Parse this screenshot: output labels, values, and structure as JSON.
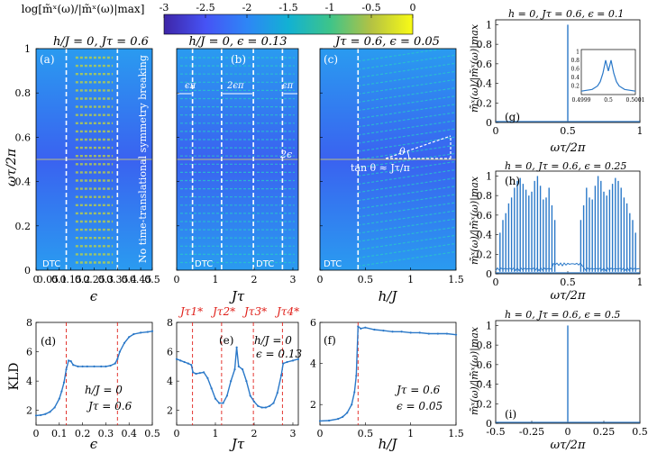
{
  "chart_data": [
    {
      "id": "a",
      "type": "heatmap",
      "title": "h/J = 0, Jτ = 0.6",
      "panel_label": "(a)",
      "xlabel": "ϵ",
      "ylabel": "ωτ/2π",
      "xlim": [
        0,
        0.5
      ],
      "ylim": [
        0,
        1
      ],
      "xticks": [
        "0",
        "0.05",
        "0.1",
        "0.15",
        "0.2",
        "0.25",
        "0.3",
        "0.35",
        "0.4",
        "0.45",
        "0.5"
      ],
      "yticks": [
        "0",
        "0.2",
        "0.4",
        "0.6",
        "0.8",
        "1"
      ],
      "boundaries": [
        0.13,
        0.35
      ],
      "annotations": [
        "DTC",
        "No time-translational symmetry breaking"
      ]
    },
    {
      "id": "b",
      "type": "heatmap",
      "title": "h/J = 0, ϵ = 0.13",
      "panel_label": "(b)",
      "xlabel": "Jτ",
      "ylabel": "",
      "xlim": [
        0,
        3.14
      ],
      "ylim": [
        0,
        1
      ],
      "xticks": [
        "0",
        "1",
        "2",
        "3"
      ],
      "boundaries": [
        0.41,
        1.16,
        1.98,
        2.73
      ],
      "annotations": [
        "ϵπ",
        "2ϵπ",
        "ϵπ",
        "2ϵ",
        "DTC",
        "DTC"
      ]
    },
    {
      "id": "c",
      "type": "heatmap",
      "title": "Jτ = 0.6, ϵ = 0.05",
      "panel_label": "(c)",
      "xlabel": "h/J",
      "ylabel": "",
      "xlim": [
        0,
        1.5
      ],
      "ylim": [
        0,
        1
      ],
      "xticks": [
        "0",
        "0.5",
        "1",
        "1.5"
      ],
      "boundaries": [
        0.42
      ],
      "annotations": [
        "DTC",
        "θ",
        "tan θ ≈ Jτ/π"
      ]
    },
    {
      "id": "colorbar",
      "type": "colorbar",
      "label": "log[m̃ˣ(ω)/|m̃ˣ(ω)|max]",
      "range": [
        -3,
        0
      ],
      "ticks": [
        "-3",
        "-2.5",
        "-2",
        "-1.5",
        "-1",
        "-0.5",
        "0"
      ],
      "colors": [
        "#3e26a8",
        "#4653f5",
        "#2e86f6",
        "#12b1d3",
        "#3dc48a",
        "#b4c243",
        "#f9fb15"
      ]
    },
    {
      "id": "d",
      "type": "line",
      "panel_label": "(d)",
      "xlabel": "ϵ",
      "ylabel": "KLD",
      "xlim": [
        0,
        0.5
      ],
      "ylim": [
        1,
        8
      ],
      "xticks": [
        "0",
        "0.1",
        "0.2",
        "0.3",
        "0.4",
        "0.5"
      ],
      "yticks": [
        "2",
        "4",
        "6",
        "8"
      ],
      "vlines": [
        0.13,
        0.35
      ],
      "legend_text": [
        "h/J = 0",
        "Jτ = 0.6"
      ],
      "x": [
        0,
        0.02,
        0.04,
        0.06,
        0.08,
        0.1,
        0.11,
        0.12,
        0.13,
        0.14,
        0.15,
        0.16,
        0.18,
        0.2,
        0.22,
        0.25,
        0.28,
        0.3,
        0.32,
        0.34,
        0.35,
        0.36,
        0.38,
        0.4,
        0.42,
        0.45,
        0.48,
        0.5
      ],
      "y": [
        1.65,
        1.68,
        1.75,
        1.9,
        2.2,
        2.8,
        3.3,
        3.9,
        4.8,
        5.4,
        5.35,
        5.1,
        5.0,
        5.0,
        5.0,
        5.0,
        5.0,
        5.0,
        5.05,
        5.2,
        5.5,
        6.0,
        6.6,
        7.0,
        7.2,
        7.3,
        7.35,
        7.4
      ]
    },
    {
      "id": "e",
      "type": "line",
      "panel_label": "(e)",
      "xlabel": "Jτ",
      "ylabel": "",
      "xlim": [
        0,
        3.14
      ],
      "ylim": [
        1,
        8
      ],
      "xticks": [
        "0",
        "1",
        "2",
        "3"
      ],
      "yticks": [
        "2",
        "4",
        "6",
        "8"
      ],
      "vlines": [
        0.41,
        1.16,
        1.98,
        2.73
      ],
      "vline_labels": [
        "Jτ1*",
        "Jτ2*",
        "Jτ3*",
        "Jτ4*"
      ],
      "legend_text": [
        "h/J = 0",
        "ϵ = 0.13"
      ],
      "x": [
        0,
        0.1,
        0.2,
        0.3,
        0.38,
        0.42,
        0.5,
        0.6,
        0.7,
        0.8,
        0.9,
        1.0,
        1.1,
        1.2,
        1.3,
        1.4,
        1.5,
        1.55,
        1.6,
        1.7,
        1.8,
        1.9,
        2.0,
        2.1,
        2.2,
        2.3,
        2.4,
        2.5,
        2.6,
        2.7,
        2.75,
        2.85,
        3.0,
        3.14
      ],
      "y": [
        5.5,
        5.4,
        5.3,
        5.2,
        5.1,
        4.6,
        4.5,
        4.55,
        4.6,
        4.2,
        3.5,
        2.8,
        2.5,
        2.5,
        3.0,
        4.0,
        4.8,
        6.3,
        5.0,
        4.8,
        4.0,
        3.0,
        2.6,
        2.3,
        2.2,
        2.2,
        2.3,
        2.5,
        3.2,
        4.4,
        5.2,
        5.3,
        5.4,
        5.5
      ]
    },
    {
      "id": "f",
      "type": "line",
      "panel_label": "(f)",
      "xlabel": "h/J",
      "ylabel": "",
      "xlim": [
        0,
        1.5
      ],
      "ylim": [
        1,
        6
      ],
      "xticks": [
        "0",
        "0.5",
        "1",
        "1.5"
      ],
      "yticks": [
        "2",
        "4",
        "6"
      ],
      "vlines": [
        0.42
      ],
      "legend_text": [
        "Jτ = 0.6",
        "ϵ = 0.05"
      ],
      "x": [
        0,
        0.1,
        0.2,
        0.25,
        0.3,
        0.35,
        0.38,
        0.4,
        0.42,
        0.45,
        0.5,
        0.6,
        0.7,
        0.8,
        0.9,
        1.0,
        1.1,
        1.2,
        1.3,
        1.4,
        1.5
      ],
      "y": [
        1.2,
        1.22,
        1.3,
        1.4,
        1.6,
        2.0,
        2.6,
        3.4,
        5.8,
        5.7,
        5.75,
        5.65,
        5.6,
        5.55,
        5.55,
        5.5,
        5.5,
        5.45,
        5.45,
        5.45,
        5.4
      ]
    },
    {
      "id": "g",
      "type": "line",
      "title": "h = 0, Jτ = 0.6, ϵ = 0.1",
      "panel_label": "(g)",
      "xlabel": "ωτ/2π",
      "ylabel": "m̃ˣ(ω)/|m̃ˣ(ω)|max",
      "xlim": [
        0,
        1
      ],
      "ylim": [
        0,
        1.05
      ],
      "xticks": [
        "0",
        "0.5",
        "1"
      ],
      "yticks": [
        "0",
        "0.2",
        "0.4",
        "0.6",
        "0.8",
        "1"
      ],
      "peaks": [
        [
          0.5,
          1.0
        ]
      ],
      "inset": {
        "xticks": [
          "0.4999",
          "0.5",
          "0.5001"
        ],
        "yticks": [
          "0.2",
          "0.4",
          "0.6",
          "0.8",
          "1"
        ],
        "x": [
          0.4999,
          0.49994,
          0.49996,
          0.49997,
          0.49998,
          0.49999,
          0.5,
          0.50001,
          0.50002,
          0.50003,
          0.50004,
          0.50006,
          0.5001
        ],
        "y": [
          0.08,
          0.12,
          0.2,
          0.3,
          0.5,
          0.8,
          0.55,
          0.8,
          0.5,
          0.3,
          0.2,
          0.12,
          0.08
        ]
      }
    },
    {
      "id": "h",
      "type": "line",
      "title": "h = 0, Jτ = 0.6, ϵ = 0.25",
      "panel_label": "(h)",
      "xlabel": "ωτ/2π",
      "ylabel": "m̃ˣ(ω)/|m̃ˣ(ω)|max",
      "xlim": [
        0,
        1
      ],
      "ylim": [
        0,
        1.05
      ],
      "xticks": [
        "0",
        "0.5",
        "1"
      ],
      "yticks": [
        "0",
        "0.2",
        "0.4",
        "0.6",
        "0.8",
        "1"
      ],
      "peaks": [
        [
          0.03,
          0.42
        ],
        [
          0.05,
          0.55
        ],
        [
          0.07,
          0.62
        ],
        [
          0.09,
          0.72
        ],
        [
          0.11,
          0.78
        ],
        [
          0.13,
          0.88
        ],
        [
          0.15,
          0.95
        ],
        [
          0.17,
          0.98
        ],
        [
          0.19,
          0.92
        ],
        [
          0.21,
          0.86
        ],
        [
          0.23,
          0.8
        ],
        [
          0.25,
          0.84
        ],
        [
          0.27,
          0.95
        ],
        [
          0.29,
          1.0
        ],
        [
          0.31,
          0.9
        ],
        [
          0.33,
          0.76
        ],
        [
          0.35,
          0.78
        ],
        [
          0.37,
          0.88
        ],
        [
          0.39,
          0.7
        ],
        [
          0.41,
          0.55
        ],
        [
          0.59,
          0.55
        ],
        [
          0.61,
          0.7
        ],
        [
          0.63,
          0.88
        ],
        [
          0.65,
          0.78
        ],
        [
          0.67,
          0.76
        ],
        [
          0.69,
          0.9
        ],
        [
          0.71,
          1.0
        ],
        [
          0.73,
          0.95
        ],
        [
          0.75,
          0.84
        ],
        [
          0.77,
          0.8
        ],
        [
          0.79,
          0.86
        ],
        [
          0.81,
          0.92
        ],
        [
          0.83,
          0.98
        ],
        [
          0.85,
          0.95
        ],
        [
          0.87,
          0.88
        ],
        [
          0.89,
          0.78
        ],
        [
          0.91,
          0.72
        ],
        [
          0.93,
          0.62
        ],
        [
          0.95,
          0.55
        ],
        [
          0.97,
          0.42
        ]
      ]
    },
    {
      "id": "i",
      "type": "line",
      "title": "h = 0, Jτ = 0.6, ϵ = 0.5",
      "panel_label": "(i)",
      "xlabel": "ωτ/2π",
      "ylabel": "m̃ˣ(ω)/|m̃ˣ(ω)|max",
      "xlim": [
        -0.5,
        0.5
      ],
      "ylim": [
        0,
        1.05
      ],
      "xticks": [
        "-0.5",
        "-0.25",
        "0",
        "0.25",
        "0.5"
      ],
      "yticks": [
        "0",
        "0.2",
        "0.4",
        "0.6",
        "0.8",
        "1"
      ],
      "peaks": [
        [
          0,
          1.0
        ]
      ]
    }
  ]
}
